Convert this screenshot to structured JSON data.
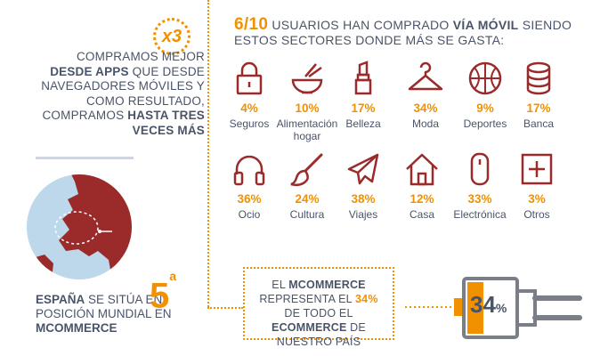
{
  "left": {
    "badge": "x3",
    "p1": "COMPRAMOS MEJOR ",
    "p1_bold": "DESDE APPS",
    "p2": " QUE DESDE NAVEGADORES MÓVILES Y COMO RESULTADO, COMPRAMOS ",
    "p2_bold": "HASTA TRES VECES MÁS"
  },
  "spain": {
    "bold1": "ESPAÑA",
    "text1": " SE SITÚA EN POSICIÓN MUNDIAL EN ",
    "bold2": "MCOMMERCE",
    "rank": "5",
    "rank_sup": "a"
  },
  "header": {
    "big": "6/10",
    "t1": " USUARIOS HAN COMPRADO ",
    "b1": "VÍA MÓVIL",
    "t2": " SIENDO ESTOS SECTORES DONDE MÁS SE GASTA:"
  },
  "categories": [
    {
      "pct": "4%",
      "label": "Seguros",
      "icon": "lock-icon"
    },
    {
      "pct": "10%",
      "label": "Alimentación hogar",
      "icon": "bowl-icon"
    },
    {
      "pct": "17%",
      "label": "Belleza",
      "icon": "lipstick-icon"
    },
    {
      "pct": "34%",
      "label": "Moda",
      "icon": "hanger-icon"
    },
    {
      "pct": "9%",
      "label": "Deportes",
      "icon": "basketball-icon"
    },
    {
      "pct": "17%",
      "label": "Banca",
      "icon": "coins-icon"
    },
    {
      "pct": "36%",
      "label": "Ocio",
      "icon": "headphones-icon"
    },
    {
      "pct": "24%",
      "label": "Cultura",
      "icon": "paintbrush-icon"
    },
    {
      "pct": "38%",
      "label": "Viajes",
      "icon": "airplane-icon"
    },
    {
      "pct": "12%",
      "label": "Casa",
      "icon": "house-icon"
    },
    {
      "pct": "33%",
      "label": "Electrónica",
      "icon": "mouse-icon"
    },
    {
      "pct": "3%",
      "label": "Otros",
      "icon": "plus-icon"
    }
  ],
  "mcommerce": {
    "t1": "EL ",
    "b1": "MCOMMERCE",
    "t2": " REPRESENTA EL ",
    "b2": "34%",
    "t3": " DE TODO EL ",
    "b3": "ECOMMERCE",
    "t4": " DE NUESTRO PAÍS",
    "battery_value": "34",
    "battery_unit": "%",
    "battery_level": 0.34
  },
  "colors": {
    "accent": "#f29100",
    "icon": "#9b2b2b",
    "text": "#4a5468"
  }
}
